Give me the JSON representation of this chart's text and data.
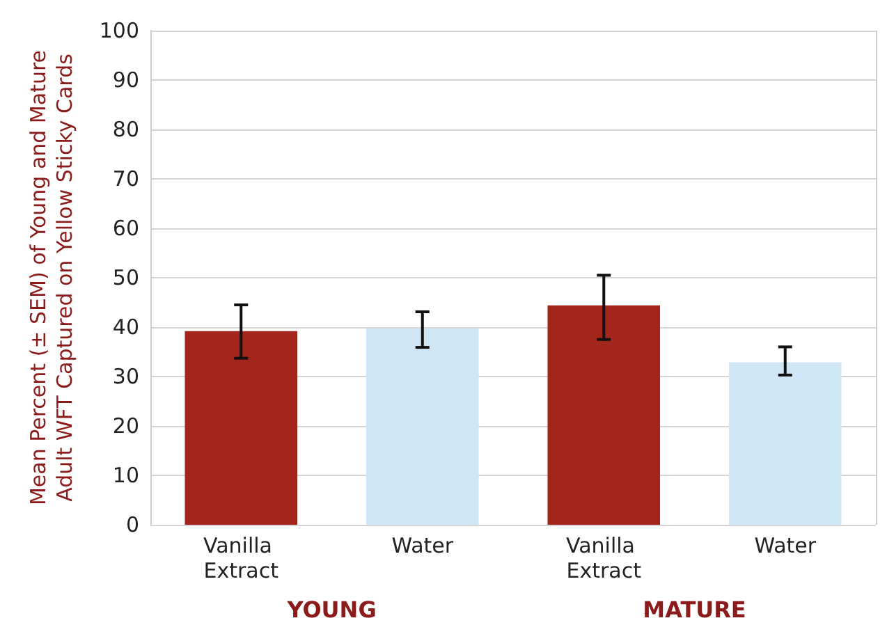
{
  "chart_data": {
    "type": "bar",
    "ylabel": "Mean Percent (± SEM) of Young and Mature Adult WFT Captured on Yellow Sticky Cards",
    "categories": [
      "Vanilla Extract",
      "Water",
      "Vanilla Extract",
      "Water"
    ],
    "values": [
      39.2,
      39.8,
      44.4,
      32.9
    ],
    "colors": [
      "#a3261c",
      "#cfe6f6",
      "#a3261c",
      "#cfe6f6"
    ],
    "errors": [
      [
        33.7,
        44.5
      ],
      [
        35.9,
        43.1
      ],
      [
        37.5,
        50.5
      ],
      [
        30.3,
        36.0
      ]
    ],
    "ylim": [
      0,
      100
    ],
    "yticks": [
      0,
      10,
      20,
      30,
      40,
      50,
      60,
      70,
      80,
      90,
      100
    ],
    "grid": "y",
    "annotations": [
      "YOUNG",
      "MATURE"
    ]
  }
}
